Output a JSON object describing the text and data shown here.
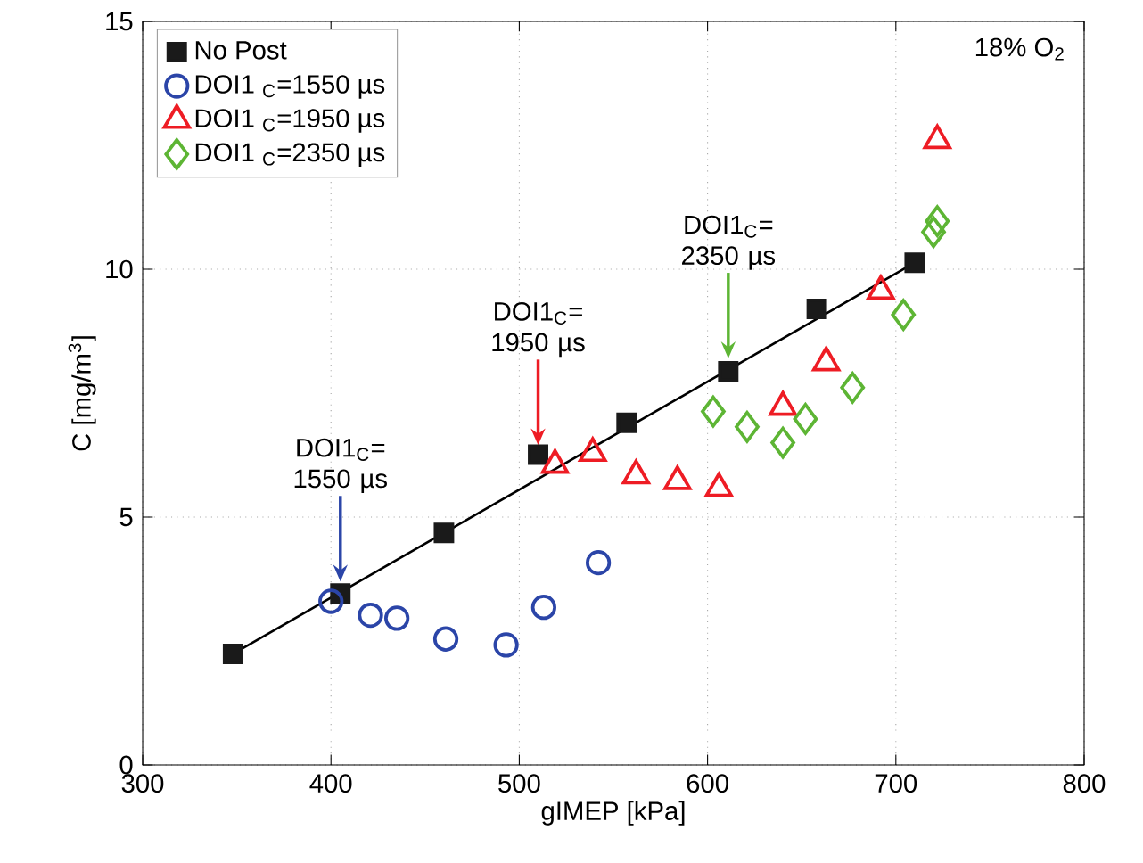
{
  "chart_data": {
    "type": "scatter",
    "xlabel": "gIMEP [kPa]",
    "ylabel": "C [mg/m$^{3}$]",
    "xlim": [
      300,
      800
    ],
    "xticks": [
      300,
      400,
      500,
      600,
      700,
      800
    ],
    "ylim": [
      0,
      15
    ],
    "yticks": [
      0,
      5,
      10,
      15
    ],
    "grid": true,
    "legend": "top left",
    "series": [
      {
        "name": "No Post",
        "marker": "square",
        "color": "#1a1a1a",
        "x": [
          348,
          405,
          460,
          510,
          557,
          611,
          658,
          710
        ],
        "values": [
          2.24,
          3.46,
          4.68,
          6.26,
          6.9,
          7.94,
          9.2,
          10.13
        ]
      },
      {
        "name": "DOI1 $_{C}$=1550 µs",
        "marker": "circle",
        "color": "#2b45a8",
        "x": [
          400,
          421,
          435,
          461,
          493,
          513,
          542
        ],
        "values": [
          3.3,
          3.02,
          2.96,
          2.54,
          2.42,
          3.18,
          4.08
        ]
      },
      {
        "name": "DOI1 $_{C}$=1950 µs",
        "marker": "triangle",
        "color": "#ee1c24",
        "x": [
          519,
          539,
          562,
          584,
          606,
          640,
          663,
          692,
          722
        ],
        "values": [
          6.05,
          6.29,
          5.84,
          5.72,
          5.58,
          7.22,
          8.12,
          9.56,
          12.6
        ]
      },
      {
        "name": "DOI1 $_{C}$=2350 µs",
        "marker": "diamond",
        "color": "#5db534",
        "x": [
          603,
          621,
          640,
          652,
          677,
          704,
          720,
          722
        ],
        "values": [
          7.13,
          6.82,
          6.5,
          6.98,
          7.61,
          9.08,
          10.75,
          10.97
        ]
      },
      {
        "type": "line",
        "marker": "none",
        "line_style": "solid",
        "color": "#000000",
        "x": [
          348,
          710
        ],
        "values": [
          2.24,
          10.13
        ]
      }
    ],
    "annotations": [
      {
        "text": "DOI1$_{C}$= 1550 µs",
        "x": 405,
        "y": 3.7
      },
      {
        "text": "DOI1$_{C}$= 1950 µs",
        "x": 510,
        "y": 6.45
      },
      {
        "text": "DOI1$_{C}$= 2350 µs",
        "x": 611,
        "y": 8.2
      },
      "18% O$_{2}$"
    ]
  }
}
